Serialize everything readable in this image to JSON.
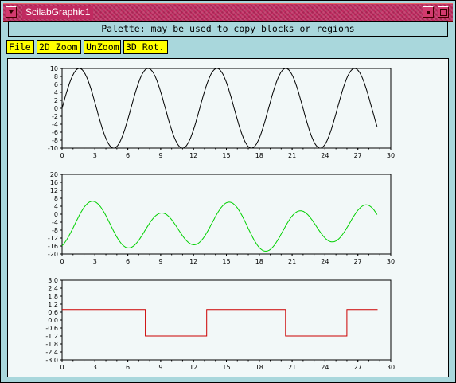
{
  "window": {
    "title": "ScilabGraphic1"
  },
  "palette_text": "Palette: may be used to copy  blocks or regions",
  "toolbar": {
    "file": "File",
    "zoom2d": "2D Zoom",
    "unzoom": "UnZoom",
    "rot3d": "3D Rot."
  },
  "chart_data": [
    {
      "type": "line",
      "series": [
        {
          "color": "#000000",
          "function": "10*sin(x)",
          "x_range": [
            0,
            28.8
          ]
        }
      ],
      "xlim": [
        0,
        30
      ],
      "ylim": [
        -10,
        10
      ],
      "xticks": [
        "0",
        "3",
        "6",
        "9",
        "12",
        "15",
        "18",
        "21",
        "24",
        "27",
        "30"
      ],
      "yticks": [
        "10",
        "8",
        "6",
        "4",
        "2",
        "0",
        "-2",
        "-4",
        "-6",
        "-8",
        "-10"
      ]
    },
    {
      "type": "line",
      "series": [
        {
          "color": "#00d000",
          "function": "-6.5 + 10*sin(x) filtered (smoothed)",
          "x_range": [
            0,
            28.8
          ]
        }
      ],
      "xlim": [
        0,
        30
      ],
      "ylim": [
        -20,
        20
      ],
      "xticks": [
        "0",
        "3",
        "6",
        "9",
        "12",
        "15",
        "18",
        "21",
        "24",
        "27",
        "30"
      ],
      "yticks": [
        "20",
        "16",
        "12",
        "8",
        "4",
        "0",
        "-4",
        "-8",
        "-12",
        "-16",
        "-20"
      ]
    },
    {
      "type": "line",
      "series": [
        {
          "color": "#cc0000",
          "points": [
            [
              0,
              0.8
            ],
            [
              7.6,
              0.8
            ],
            [
              7.6,
              -1.2
            ],
            [
              13.2,
              -1.2
            ],
            [
              13.2,
              0.8
            ],
            [
              20.4,
              0.8
            ],
            [
              20.4,
              -1.2
            ],
            [
              26,
              -1.2
            ],
            [
              26,
              0.8
            ],
            [
              28.8,
              0.8
            ]
          ]
        }
      ],
      "xlim": [
        0,
        30
      ],
      "ylim": [
        -3,
        3
      ],
      "xticks": [
        "0",
        "3",
        "6",
        "9",
        "12",
        "15",
        "18",
        "21",
        "24",
        "27",
        "30"
      ],
      "yticks": [
        "3.0",
        "2.4",
        "1.8",
        "1.2",
        "0.6",
        "0.0",
        "-0.6",
        "-1.2",
        "-1.8",
        "-2.4",
        "-3.0"
      ]
    }
  ]
}
